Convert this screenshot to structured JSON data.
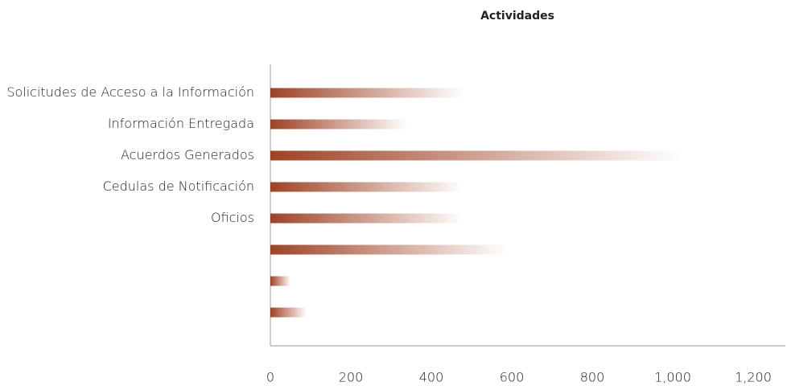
{
  "chart_data": {
    "type": "bar",
    "orientation": "horizontal",
    "title": "Actividades",
    "categories": [
      "Solicitudes de Acceso a la Información",
      "Información Entregada",
      "Acuerdos Generados",
      "Cedulas de Notificación",
      "Oficios",
      null,
      null,
      null
    ],
    "values": [
      480,
      340,
      1020,
      480,
      480,
      585,
      50,
      90
    ],
    "color": "#9e4225",
    "xlim": [
      0,
      1280
    ],
    "xticks": [
      0,
      200,
      400,
      600,
      800,
      {
        "value": 1000,
        "label": "1,000"
      },
      {
        "value": 1200,
        "label": "1,200"
      }
    ],
    "grid": false
  }
}
